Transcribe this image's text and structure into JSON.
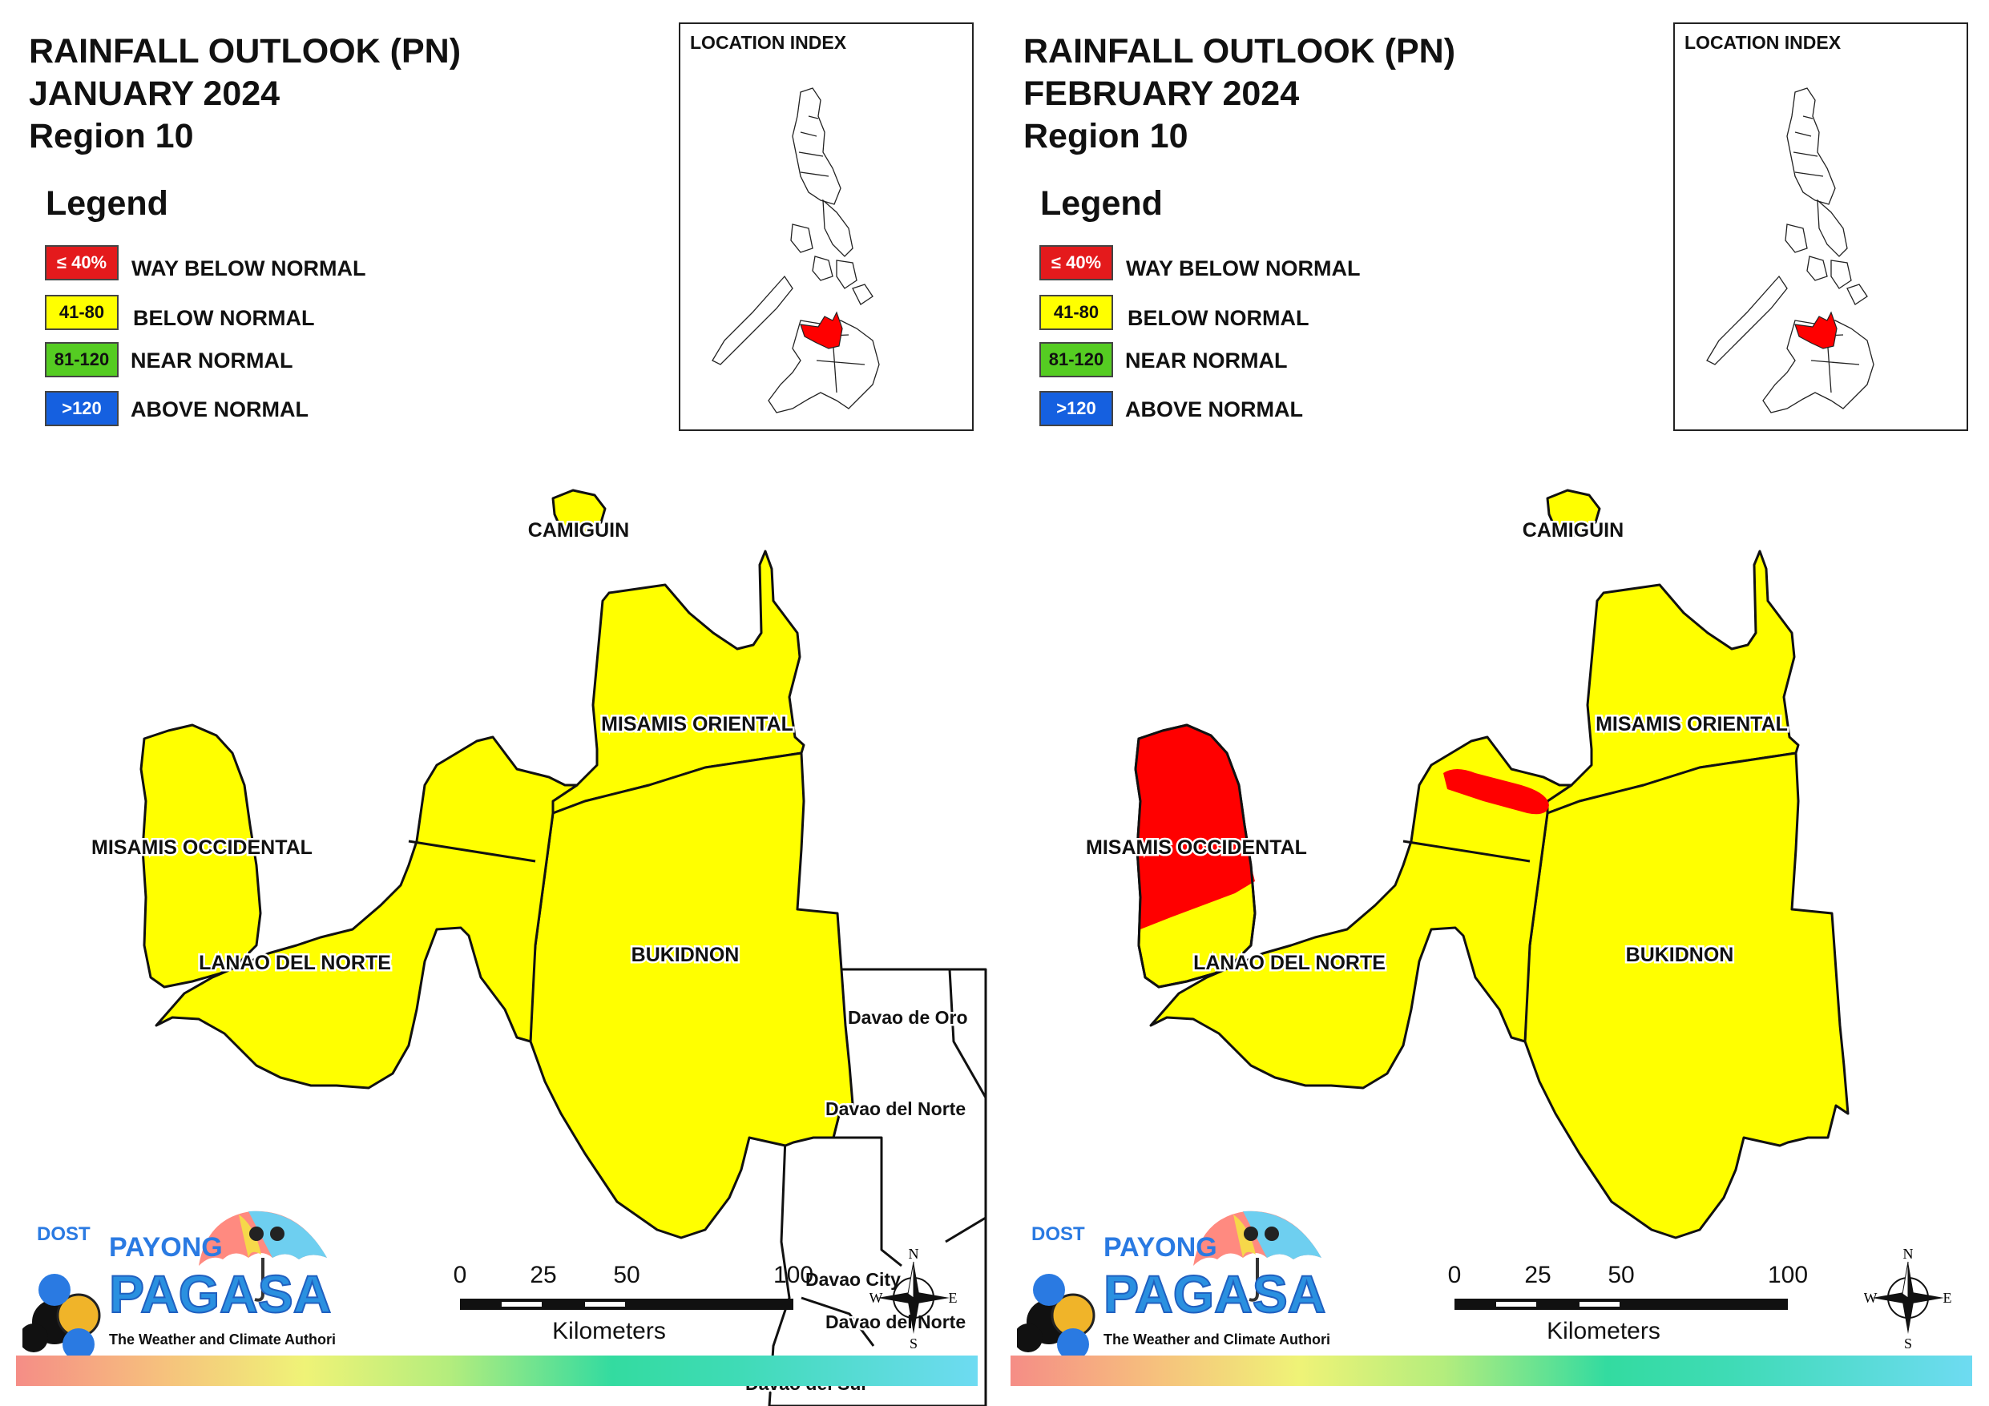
{
  "panels": [
    {
      "title_line1": "RAINFALL OUTLOOK (PN)",
      "title_line2": "JANUARY 2024",
      "title_line3": "Region 10",
      "legend_title": "Legend",
      "legend": [
        {
          "range": "≤ 40%",
          "label": "WAY BELOW NORMAL",
          "color": "#e41a1c"
        },
        {
          "range": "41-80",
          "label": "BELOW NORMAL",
          "color": "#ffff00"
        },
        {
          "range": "81-120",
          "label": "NEAR NORMAL",
          "color": "#55cc22"
        },
        {
          "range": ">120",
          "label": "ABOVE NORMAL",
          "color": "#1560e0"
        }
      ],
      "location_index": "LOCATION INDEX",
      "provinces": {
        "camiguin": "CAMIGUIN",
        "misamis_oriental": "MISAMIS ORIENTAL",
        "misamis_occidental": "MISAMIS OCCIDENTAL",
        "lanao_del_norte": "LANAO DEL NORTE",
        "bukidnon": "BUKIDNON"
      },
      "province_outlook": {
        "camiguin": "BELOW NORMAL",
        "misamis_oriental": "BELOW NORMAL",
        "misamis_occidental": "BELOW NORMAL",
        "lanao_del_norte": "BELOW NORMAL",
        "bukidnon": "BELOW NORMAL"
      },
      "neighbors": {
        "davao_de_oro": "Davao de Oro",
        "davao_del_norte": "Davao del Norte",
        "davao_city": "Davao City",
        "davao_del_norte_2": "Davao del Norte",
        "davao_del_sur": "Davao del Sur"
      },
      "scale": {
        "ticks": [
          "0",
          "25",
          "50",
          "100"
        ],
        "unit": "Kilometers"
      },
      "compass": {
        "n": "N",
        "s": "S",
        "e": "E",
        "w": "W"
      },
      "logo": {
        "dost": "DOST",
        "payong": "PAYONG",
        "pagasa": "PAGASA",
        "tagline": "The Weather and Climate Authority"
      }
    },
    {
      "title_line1": "RAINFALL OUTLOOK (PN)",
      "title_line2": "FEBRUARY 2024",
      "title_line3": "Region 10",
      "legend_title": "Legend",
      "legend": [
        {
          "range": "≤ 40%",
          "label": "WAY BELOW NORMAL",
          "color": "#e41a1c"
        },
        {
          "range": "41-80",
          "label": "BELOW NORMAL",
          "color": "#ffff00"
        },
        {
          "range": "81-120",
          "label": "NEAR NORMAL",
          "color": "#55cc22"
        },
        {
          "range": ">120",
          "label": "ABOVE NORMAL",
          "color": "#1560e0"
        }
      ],
      "location_index": "LOCATION INDEX",
      "provinces": {
        "camiguin": "CAMIGUIN",
        "misamis_oriental": "MISAMIS ORIENTAL",
        "misamis_occidental": "MISAMIS OCCIDENTAL",
        "lanao_del_norte": "LANAO DEL NORTE",
        "bukidnon": "BUKIDNON"
      },
      "province_outlook": {
        "camiguin": "BELOW NORMAL",
        "misamis_oriental": "BELOW NORMAL",
        "misamis_occidental": "WAY BELOW NORMAL (mostly)",
        "lanao_del_norte": "BELOW NORMAL (with way below normal patch)",
        "bukidnon": "BELOW NORMAL"
      },
      "scale": {
        "ticks": [
          "0",
          "25",
          "50",
          "100"
        ],
        "unit": "Kilometers"
      },
      "compass": {
        "n": "N",
        "s": "S",
        "e": "E",
        "w": "W"
      },
      "logo": {
        "dost": "DOST",
        "payong": "PAYONG",
        "pagasa": "PAGASA",
        "tagline": "The Weather and Climate Authority"
      }
    }
  ],
  "colors": {
    "below_normal": "#ffff00",
    "way_below_normal": "#ff0000",
    "border": "#111111"
  }
}
